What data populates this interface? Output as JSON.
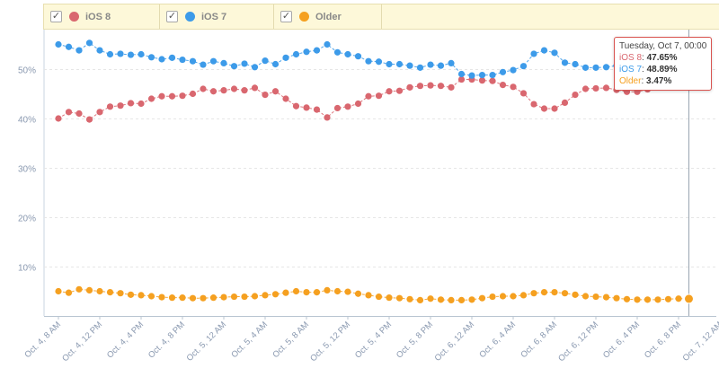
{
  "legend": [
    {
      "label": "iOS 8",
      "checked": true,
      "color": "#d9676f"
    },
    {
      "label": "iOS 7",
      "checked": true,
      "color": "#3d9be9"
    },
    {
      "label": "Older",
      "checked": true,
      "color": "#f5a020"
    }
  ],
  "checkmark": "✓",
  "tooltip": {
    "title": "Tuesday, Oct 7, 00:00",
    "rows": [
      {
        "name": "iOS 8",
        "value": "47.65%",
        "color": "#d9676f"
      },
      {
        "name": "iOS 7",
        "value": "48.89%",
        "color": "#3d9be9"
      },
      {
        "name": "Older",
        "value": "3.47%",
        "color": "#f5a020"
      }
    ]
  },
  "chart_data": {
    "type": "line",
    "title": "",
    "xlabel": "",
    "ylabel": "",
    "ylim": [
      0,
      58
    ],
    "y_ticks": [
      10,
      20,
      30,
      40,
      50
    ],
    "y_tick_labels": [
      "10%",
      "20%",
      "30%",
      "40%",
      "50%"
    ],
    "x_tick_labels": [
      "Oct. 4, 8 AM",
      "Oct. 4, 12 PM",
      "Oct. 4, 4 PM",
      "Oct. 4, 8 PM",
      "Oct. 5, 12 AM",
      "Oct. 5, 4 AM",
      "Oct. 5, 8 AM",
      "Oct. 5, 12 PM",
      "Oct. 5, 4 PM",
      "Oct. 5, 8 PM",
      "Oct. 6, 12 AM",
      "Oct. 6, 4 AM",
      "Oct. 6, 8 AM",
      "Oct. 6, 12 PM",
      "Oct. 6, 4 PM",
      "Oct. 6, 8 PM",
      "Oct. 7, 12 AM"
    ],
    "x_tick_step_points": 4,
    "grid": true,
    "legend_position": "top",
    "series": [
      {
        "name": "iOS 8",
        "color": "#d9676f",
        "values": [
          40.0,
          41.3,
          41.0,
          39.8,
          41.3,
          42.4,
          42.6,
          43.1,
          43.0,
          44.0,
          44.5,
          44.5,
          44.6,
          45.0,
          46.0,
          45.5,
          45.7,
          46.0,
          45.7,
          46.2,
          44.8,
          45.5,
          44.0,
          42.5,
          42.2,
          41.8,
          40.2,
          42.1,
          42.4,
          43.0,
          44.5,
          44.6,
          45.5,
          45.6,
          46.3,
          46.6,
          46.7,
          46.6,
          46.3,
          47.9,
          47.9,
          47.7,
          47.6,
          46.8,
          46.4,
          45.1,
          42.9,
          42.0,
          42.0,
          43.2,
          44.8,
          46.0,
          46.1,
          46.2,
          45.8,
          45.4,
          45.4,
          45.9,
          46.7,
          47.8,
          47.6,
          47.65
        ]
      },
      {
        "name": "iOS 7",
        "color": "#3d9be9",
        "values": [
          55.0,
          54.5,
          53.8,
          55.3,
          53.8,
          53.0,
          53.1,
          52.9,
          53.0,
          52.4,
          52.0,
          52.3,
          51.9,
          51.6,
          50.9,
          51.6,
          51.2,
          50.6,
          51.1,
          50.4,
          51.7,
          51.0,
          52.3,
          53.0,
          53.5,
          53.8,
          55.0,
          53.4,
          53.0,
          52.6,
          51.6,
          51.5,
          51.0,
          51.0,
          50.7,
          50.3,
          50.9,
          50.7,
          51.2,
          49.0,
          48.7,
          48.8,
          48.8,
          49.4,
          49.8,
          50.6,
          53.1,
          53.8,
          53.3,
          51.3,
          51.0,
          50.3,
          50.3,
          50.4,
          50.7,
          51.0,
          51.2,
          50.6,
          49.7,
          48.8,
          48.9,
          48.89
        ]
      },
      {
        "name": "Older",
        "color": "#f5a020",
        "values": [
          5.0,
          4.7,
          5.4,
          5.2,
          5.0,
          4.8,
          4.6,
          4.3,
          4.2,
          4.0,
          3.8,
          3.7,
          3.7,
          3.6,
          3.6,
          3.7,
          3.8,
          3.9,
          3.9,
          4.0,
          4.2,
          4.4,
          4.7,
          5.0,
          4.8,
          4.8,
          5.2,
          5.0,
          4.9,
          4.5,
          4.2,
          3.9,
          3.7,
          3.6,
          3.4,
          3.2,
          3.5,
          3.3,
          3.2,
          3.2,
          3.3,
          3.6,
          3.9,
          4.0,
          4.0,
          4.2,
          4.6,
          4.8,
          4.8,
          4.6,
          4.3,
          4.0,
          3.9,
          3.8,
          3.6,
          3.4,
          3.3,
          3.3,
          3.3,
          3.4,
          3.5,
          3.47
        ]
      }
    ]
  }
}
